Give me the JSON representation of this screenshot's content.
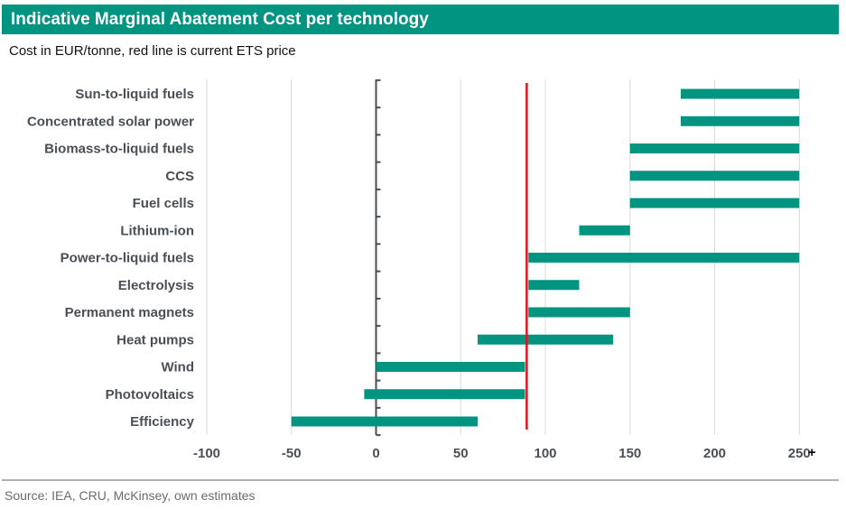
{
  "title": "Indicative Marginal Abatement Cost per technology",
  "subtitle": "Cost in EUR/tonne, red line is current ETS price",
  "source": "Source: IEA, CRU, McKinsey, own estimates",
  "colors": {
    "header": "#009481",
    "bar": "#009481",
    "ets_line": "#e0131b",
    "grid": "#d9d9d9",
    "axis": "#4a4f56"
  },
  "chart_data": {
    "type": "bar",
    "orientation": "horizontal",
    "subtype": "floating-range",
    "categories": [
      "Sun-to-liquid fuels",
      "Concentrated solar power",
      "Biomass-to-liquid fuels",
      "CCS",
      "Fuel cells",
      "Lithium-ion",
      "Power-to-liquid fuels",
      "Electrolysis",
      "Permanent magnets",
      "Heat pumps",
      "Wind",
      "Photovoltaics",
      "Efficiency"
    ],
    "ranges": [
      [
        180,
        250
      ],
      [
        180,
        250
      ],
      [
        150,
        250
      ],
      [
        150,
        250
      ],
      [
        150,
        250
      ],
      [
        120,
        150
      ],
      [
        90,
        250
      ],
      [
        90,
        120
      ],
      [
        90,
        150
      ],
      [
        60,
        140
      ],
      [
        0,
        88
      ],
      [
        -7,
        88
      ],
      [
        -50,
        60
      ]
    ],
    "reference_line": {
      "value": 89
    },
    "xlim": [
      -100,
      260
    ],
    "xticks": [
      -100,
      -50,
      0,
      50,
      100,
      150,
      200,
      250
    ],
    "xtick_labels": [
      "-100",
      "-50",
      "0",
      "50",
      "100",
      "150",
      "200",
      "250"
    ],
    "last_tick_suffix": "+",
    "xlabel": "",
    "ylabel": "",
    "grid": "vertical",
    "legend": "none"
  }
}
